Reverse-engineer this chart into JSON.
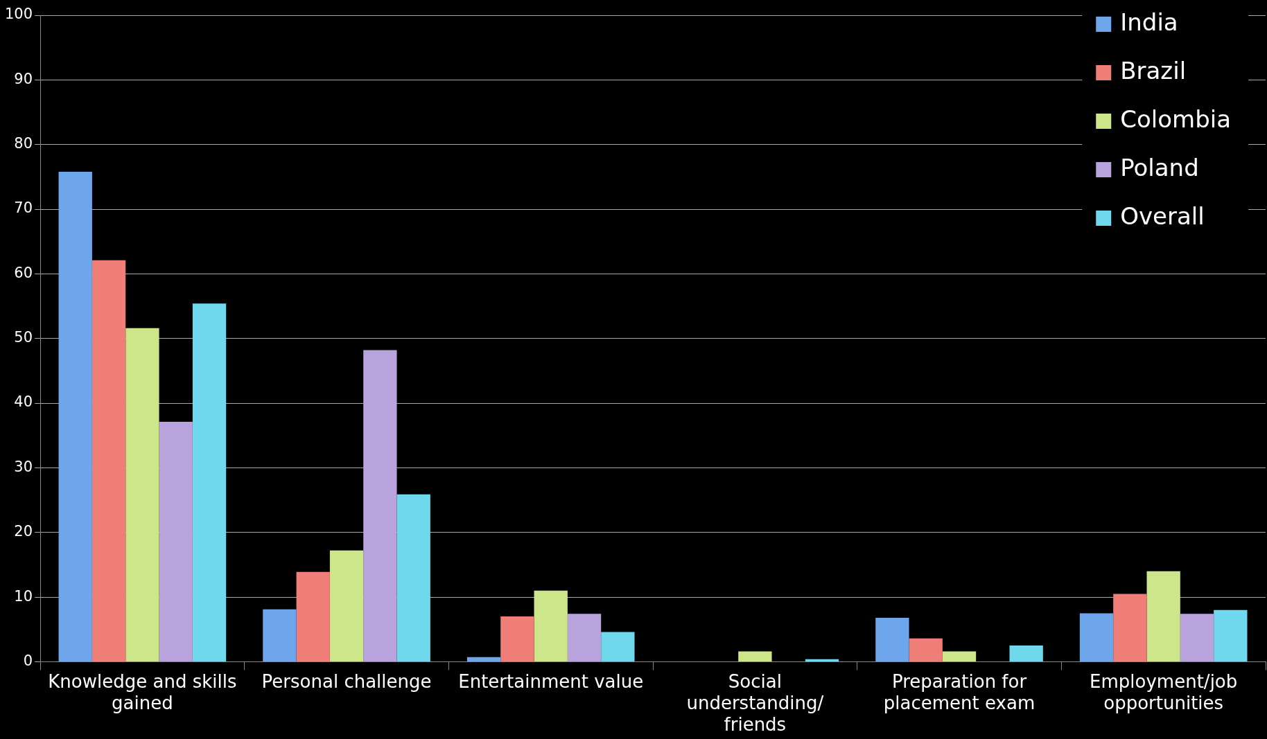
{
  "chart_data": {
    "type": "bar",
    "categories": [
      "Knowledge and skills gained",
      "Personal challenge",
      "Entertainment value",
      "Social understanding/ friends",
      "Preparation for placement exam",
      "Employment/job opportunities"
    ],
    "series": [
      {
        "name": "India",
        "color": "#6ea6ec",
        "values": [
          75.8,
          8.1,
          0.7,
          0,
          6.8,
          7.5
        ]
      },
      {
        "name": "Brazil",
        "color": "#ef7d78",
        "values": [
          62.1,
          13.9,
          7,
          0,
          3.6,
          10.5
        ]
      },
      {
        "name": "Colombia",
        "color": "#cde68a",
        "values": [
          51.6,
          17.2,
          11,
          1.6,
          1.6,
          14
        ]
      },
      {
        "name": "Poland",
        "color": "#b9a3dc",
        "values": [
          37.1,
          48.2,
          7.4,
          0,
          0,
          7.4
        ]
      },
      {
        "name": "Overall",
        "color": "#6fd8ec",
        "values": [
          55.4,
          25.9,
          4.6,
          0.4,
          2.5,
          8
        ]
      }
    ],
    "ylim": [
      0,
      100
    ],
    "yticks": [
      0,
      10,
      20,
      30,
      40,
      50,
      60,
      70,
      80,
      90,
      100
    ],
    "grid": "y",
    "legend": "top right"
  }
}
